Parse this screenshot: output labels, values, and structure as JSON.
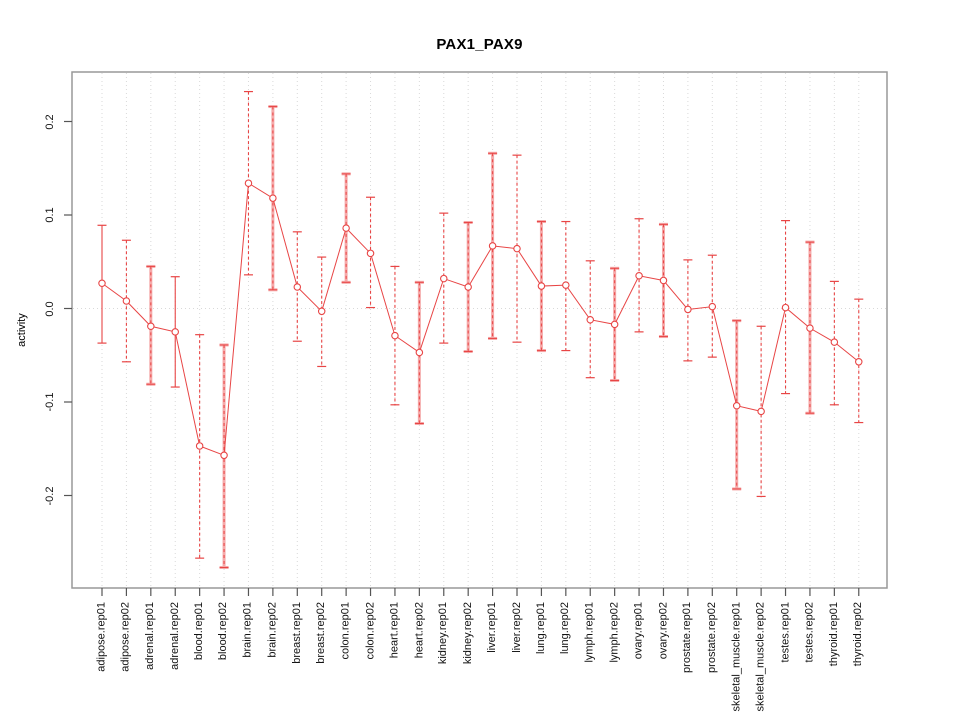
{
  "title": "PAX1_PAX9",
  "ylabel": "activity",
  "colors": {
    "point_red": "#e84545",
    "band_pink": "#f5a9a9",
    "grid_gray": "#d9d9d9",
    "box_gray": "#999999",
    "tick_gray": "#555555"
  },
  "chart_data": {
    "type": "scatter",
    "title": "PAX1_PAX9",
    "xlabel": "",
    "ylabel": "activity",
    "ylim": [
      -0.3,
      0.255
    ],
    "yticks": [
      0.2,
      0.1,
      0.0,
      -0.1,
      -0.2
    ],
    "ytick_labels": [
      "0.2",
      "0.1",
      "0.0",
      "-0.1",
      "-0.2"
    ],
    "grid": "vertical dotted gridlines at each sample; dotted horizontal line at y=0",
    "legend": "none",
    "marker": "open-circle",
    "categories": [
      "adipose.rep01",
      "adipose.rep02",
      "adrenal.rep01",
      "adrenal.rep02",
      "blood.rep01",
      "blood.rep02",
      "brain.rep01",
      "brain.rep02",
      "breast.rep01",
      "breast.rep02",
      "colon.rep01",
      "colon.rep02",
      "heart.rep01",
      "heart.rep02",
      "kidney.rep01",
      "kidney.rep02",
      "liver.rep01",
      "liver.rep02",
      "lung.rep01",
      "lung.rep02",
      "lymph.rep01",
      "lymph.rep02",
      "ovary.rep01",
      "ovary.rep02",
      "prostate.rep01",
      "prostate.rep02",
      "skeletal_muscle.rep01",
      "skeletal_muscle.rep02",
      "testes.rep01",
      "testes.rep02",
      "thyroid.rep01",
      "thyroid.rep02"
    ],
    "series": [
      {
        "name": "activity",
        "values": [
          0.027,
          0.008,
          -0.019,
          -0.025,
          -0.147,
          -0.157,
          0.134,
          0.118,
          0.023,
          -0.003,
          0.086,
          0.059,
          -0.029,
          -0.047,
          0.032,
          0.023,
          0.067,
          0.064,
          0.024,
          0.025,
          -0.012,
          -0.017,
          0.035,
          0.03,
          -0.001,
          0.002,
          -0.104,
          -0.11,
          0.001,
          -0.021,
          -0.036,
          -0.057
        ],
        "err_lo": [
          -0.037,
          -0.057,
          -0.081,
          -0.084,
          -0.267,
          -0.277,
          0.036,
          0.02,
          -0.035,
          -0.062,
          0.028,
          0.001,
          -0.103,
          -0.123,
          -0.037,
          -0.046,
          -0.032,
          -0.036,
          -0.045,
          -0.045,
          -0.074,
          -0.077,
          -0.025,
          -0.03,
          -0.056,
          -0.052,
          -0.193,
          -0.201,
          -0.091,
          -0.112,
          -0.103,
          -0.122
        ],
        "err_hi": [
          0.089,
          0.073,
          0.045,
          0.034,
          -0.028,
          -0.039,
          0.232,
          0.216,
          0.082,
          0.055,
          0.144,
          0.119,
          0.045,
          0.028,
          0.102,
          0.092,
          0.166,
          0.164,
          0.093,
          0.093,
          0.051,
          0.043,
          0.096,
          0.09,
          0.052,
          0.057,
          -0.013,
          -0.019,
          0.094,
          0.071,
          0.029,
          0.01
        ],
        "bar_styles": [
          "solid",
          "dashed",
          "pink",
          "solid",
          "dashed",
          "pink",
          "dashed",
          "pink",
          "dashed",
          "dashed",
          "pink",
          "dashed",
          "dashed",
          "pink",
          "dashed",
          "pink",
          "pink",
          "dashed",
          "pink",
          "dashed",
          "dashed",
          "pink",
          "dashed",
          "pink",
          "dashed",
          "dashed",
          "pink",
          "dashed",
          "dashed",
          "pink",
          "dashed",
          "dashed"
        ]
      }
    ]
  }
}
